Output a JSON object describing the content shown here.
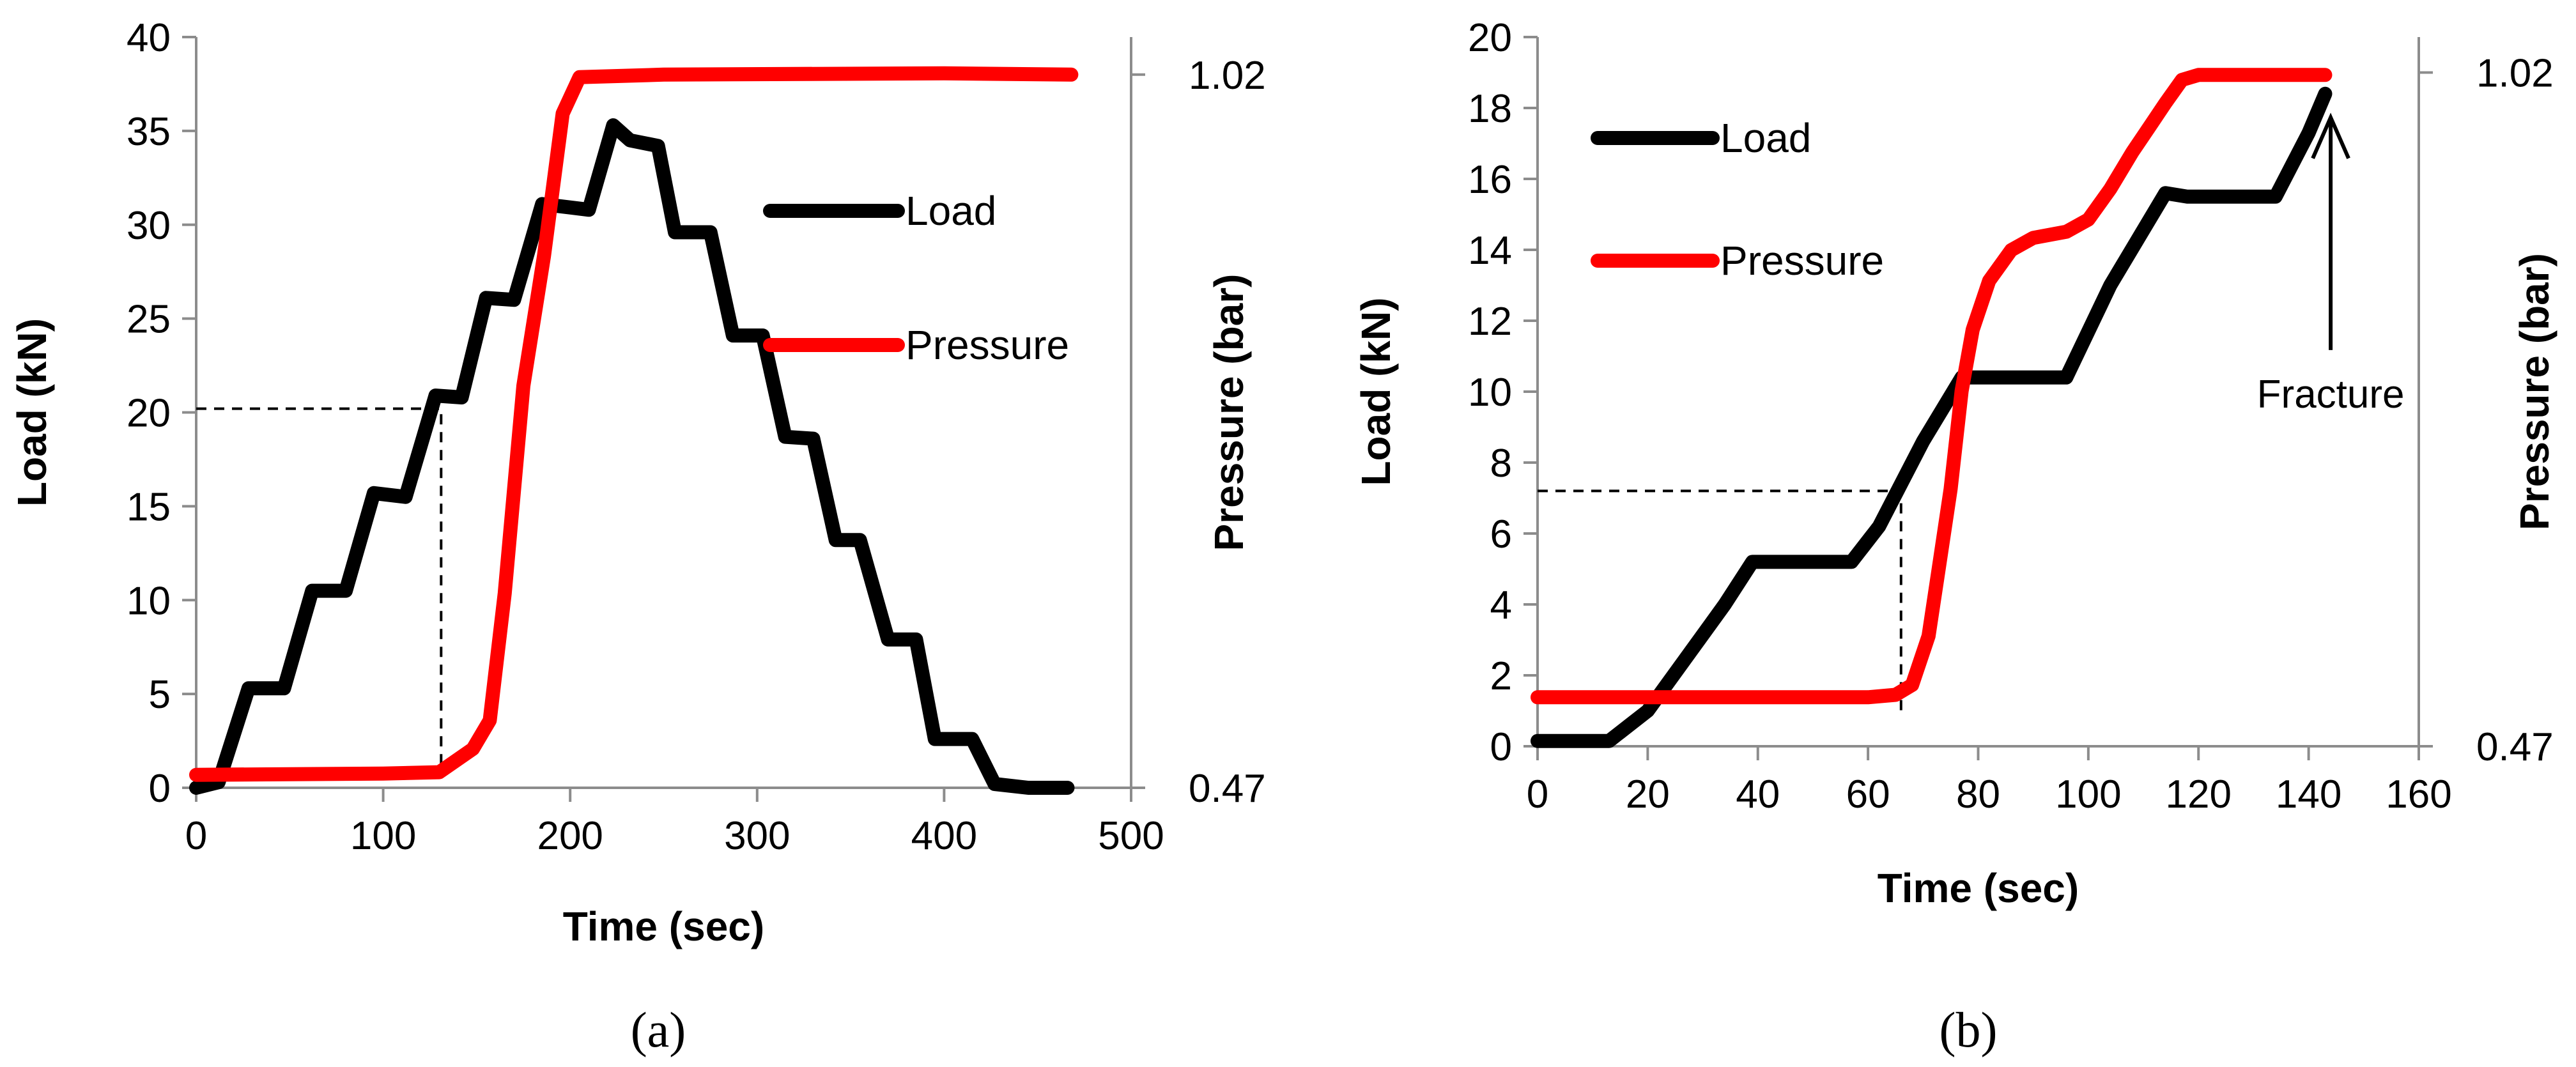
{
  "chart_data": [
    {
      "type": "line",
      "panel_label": "(a)",
      "xlabel": "Time (sec)",
      "ylabel": "Load (kN)",
      "y2label": "Pressure (bar)",
      "xlim": [
        0,
        500
      ],
      "ylim": [
        0,
        40
      ],
      "y2lim": [
        0.47,
        1.02
      ],
      "xticks": [
        "0",
        "100",
        "200",
        "300",
        "400",
        "500"
      ],
      "yticks": [
        "0",
        "5",
        "10",
        "15",
        "20",
        "25",
        "30",
        "35",
        "40"
      ],
      "y2ticks": [
        "0.47",
        "1.02"
      ],
      "grid": false,
      "legend": "right",
      "series": [
        {
          "name": "Load",
          "color": "#000000",
          "axis": "left",
          "points": [
            [
              0,
              0
            ],
            [
              12,
              0.3
            ],
            [
              28,
              5.3
            ],
            [
              47,
              5.3
            ],
            [
              62,
              10.5
            ],
            [
              80,
              10.5
            ],
            [
              95,
              15.7
            ],
            [
              112,
              15.5
            ],
            [
              128,
              20.9
            ],
            [
              142,
              20.8
            ],
            [
              155,
              26.1
            ],
            [
              170,
              26.0
            ],
            [
              185,
              31.1
            ],
            [
              210,
              30.8
            ],
            [
              223,
              35.3
            ],
            [
              232,
              34.5
            ],
            [
              247,
              34.2
            ],
            [
              256,
              29.6
            ],
            [
              275,
              29.6
            ],
            [
              287,
              24.1
            ],
            [
              303,
              24.1
            ],
            [
              315,
              18.7
            ],
            [
              330,
              18.6
            ],
            [
              342,
              13.2
            ],
            [
              355,
              13.2
            ],
            [
              370,
              7.9
            ],
            [
              385,
              7.9
            ],
            [
              395,
              2.6
            ],
            [
              415,
              2.6
            ],
            [
              427,
              0.2
            ],
            [
              445,
              0
            ],
            [
              466,
              0
            ]
          ]
        },
        {
          "name": "Pressure",
          "color": "#ff0000",
          "axis": "right",
          "points": [
            [
              0,
              0.48
            ],
            [
              100,
              0.481
            ],
            [
              130,
              0.482
            ],
            [
              148,
              0.5
            ],
            [
              157,
              0.522
            ],
            [
              165,
              0.62
            ],
            [
              175,
              0.78
            ],
            [
              186,
              0.88
            ],
            [
              196,
              0.99
            ],
            [
              205,
              1.018
            ],
            [
              250,
              1.02
            ],
            [
              400,
              1.021
            ],
            [
              468,
              1.02
            ]
          ]
        }
      ],
      "reference_lines": [
        {
          "style": "dashed",
          "points": [
            [
              0,
              20.2
            ],
            [
              131,
              20.2
            ],
            [
              131,
              1.0
            ]
          ]
        }
      ]
    },
    {
      "type": "line",
      "panel_label": "(b)",
      "xlabel": "Time (sec)",
      "ylabel": "Load (kN)",
      "y2label": "Pressure (bar)",
      "xlim": [
        0,
        160
      ],
      "ylim": [
        0,
        20
      ],
      "y2lim": [
        0.47,
        1.02
      ],
      "xticks": [
        "0",
        "20",
        "40",
        "60",
        "80",
        "100",
        "120",
        "140",
        "160"
      ],
      "yticks": [
        "0",
        "2",
        "4",
        "6",
        "8",
        "10",
        "12",
        "14",
        "16",
        "18",
        "20"
      ],
      "y2ticks": [
        "0.47",
        "1.02"
      ],
      "grid": false,
      "legend": "top-left",
      "annotation": {
        "text": "Fracture",
        "x": 144,
        "y": 17.3
      },
      "series": [
        {
          "name": "Load",
          "color": "#000000",
          "axis": "left",
          "points": [
            [
              0,
              0.15
            ],
            [
              13,
              0.15
            ],
            [
              20,
              1.0
            ],
            [
              27,
              2.5
            ],
            [
              34,
              4.0
            ],
            [
              39,
              5.2
            ],
            [
              57,
              5.2
            ],
            [
              62,
              6.2
            ],
            [
              70,
              8.6
            ],
            [
              77,
              10.4
            ],
            [
              96,
              10.4
            ],
            [
              104,
              13.0
            ],
            [
              114,
              15.6
            ],
            [
              118,
              15.5
            ],
            [
              134,
              15.5
            ],
            [
              140,
              17.3
            ],
            [
              143,
              18.4
            ]
          ]
        },
        {
          "name": "Pressure",
          "color": "#ff0000",
          "axis": "right",
          "points": [
            [
              0,
              0.51
            ],
            [
              60,
              0.51
            ],
            [
              65,
              0.512
            ],
            [
              68,
              0.52
            ],
            [
              71,
              0.56
            ],
            [
              73,
              0.62
            ],
            [
              75,
              0.68
            ],
            [
              77,
              0.76
            ],
            [
              79,
              0.81
            ],
            [
              82,
              0.85
            ],
            [
              86,
              0.875
            ],
            [
              90,
              0.885
            ],
            [
              96,
              0.89
            ],
            [
              100,
              0.9
            ],
            [
              104,
              0.925
            ],
            [
              108,
              0.955
            ],
            [
              111,
              0.975
            ],
            [
              114,
              0.995
            ],
            [
              117,
              1.014
            ],
            [
              120,
              1.018
            ],
            [
              143,
              1.018
            ]
          ]
        }
      ],
      "reference_lines": [
        {
          "style": "dashed",
          "points": [
            [
              0,
              7.2
            ],
            [
              66,
              7.2
            ],
            [
              66,
              1.0
            ]
          ]
        }
      ]
    }
  ]
}
